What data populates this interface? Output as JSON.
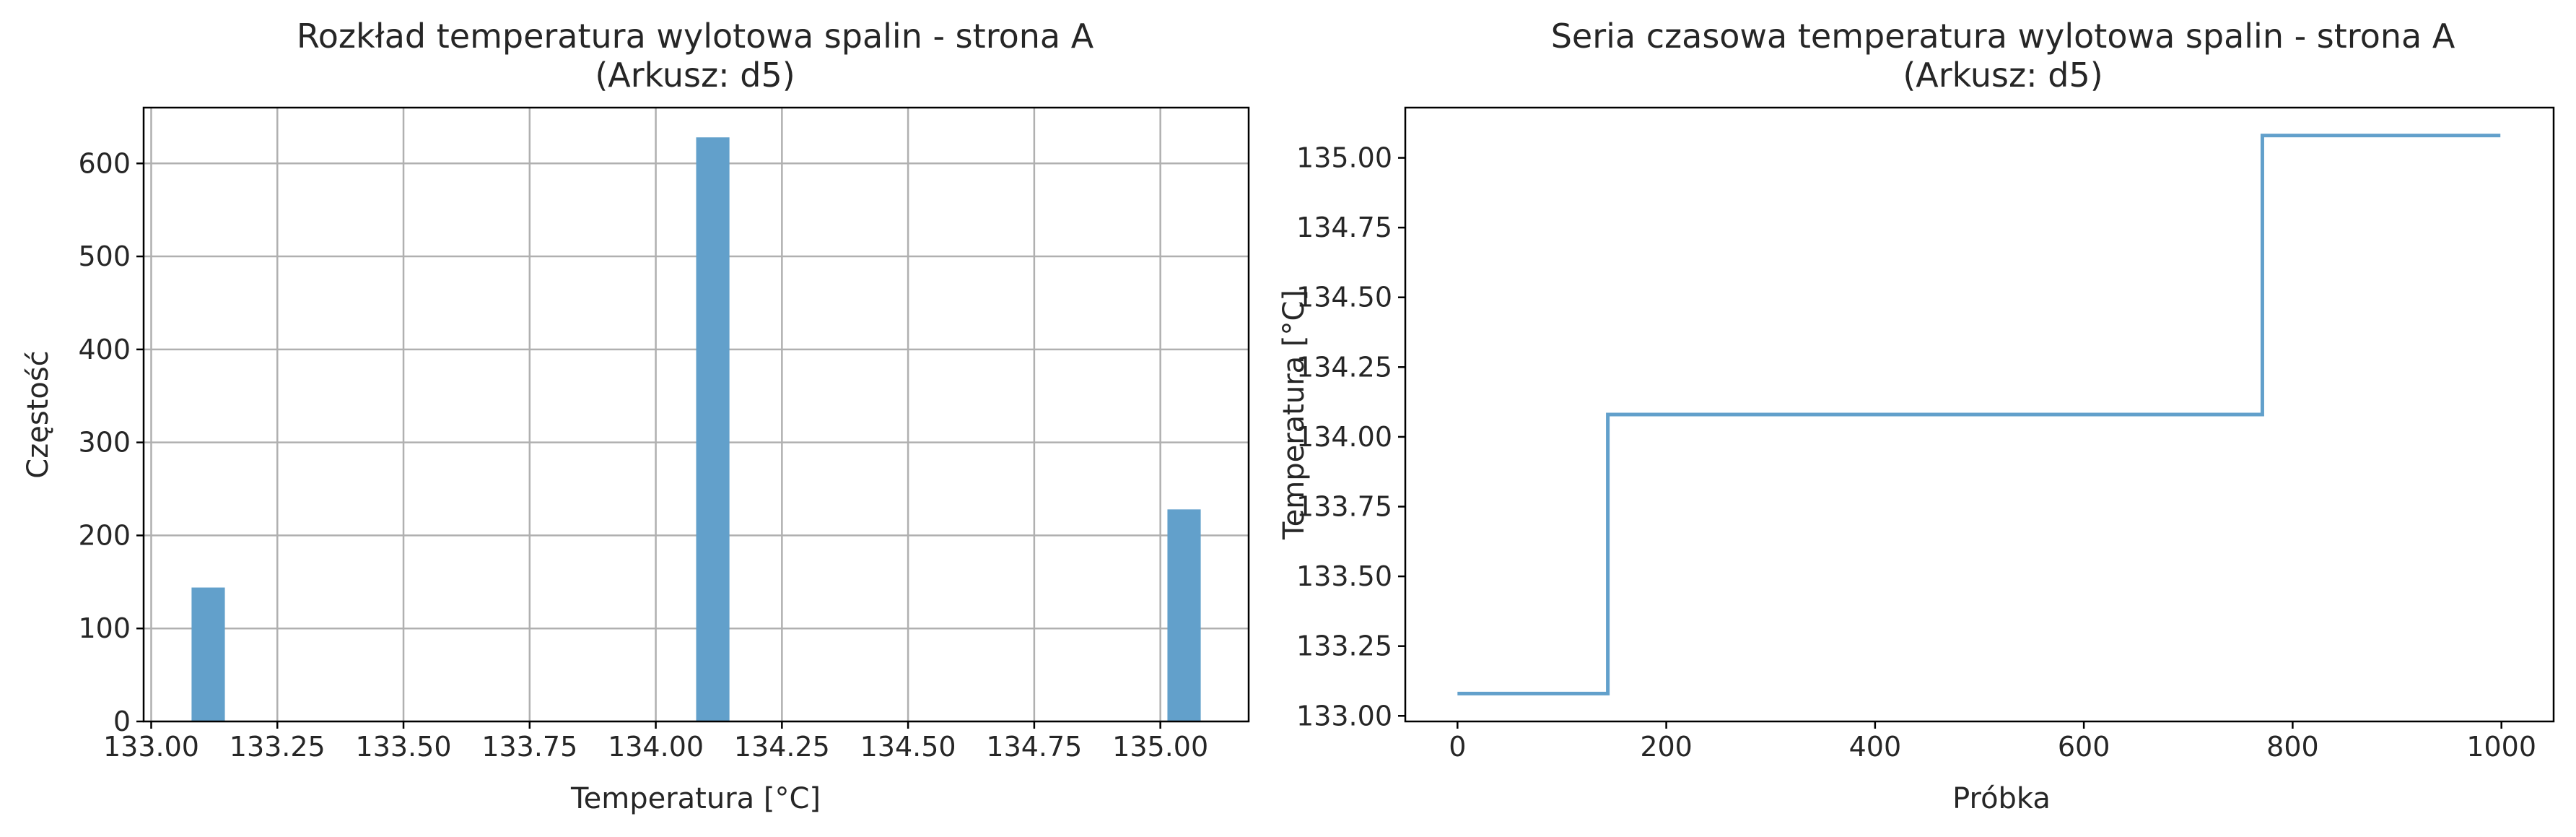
{
  "colors": {
    "bar": "#62a0cb",
    "line": "#62a0cb",
    "grid": "#b0b0b0",
    "axis": "#000000"
  },
  "chart_data": [
    {
      "type": "bar",
      "title_line1": "Rozkład temperatura wylotowa spalin - strona A",
      "title_line2": "(Arkusz: d5)",
      "xlabel": "Temperatura [°C]",
      "ylabel": "Częstość",
      "grid": true,
      "xlim": [
        132.985,
        135.175
      ],
      "ylim": [
        0,
        660
      ],
      "xticks": [
        133.0,
        133.25,
        133.5,
        133.75,
        134.0,
        134.25,
        134.5,
        134.75,
        135.0
      ],
      "xtick_labels": [
        "133.00",
        "133.25",
        "133.50",
        "133.75",
        "134.00",
        "134.25",
        "134.50",
        "134.75",
        "135.00"
      ],
      "yticks": [
        0,
        100,
        200,
        300,
        400,
        500,
        600
      ],
      "ytick_labels": [
        "0",
        "100",
        "200",
        "300",
        "400",
        "500",
        "600"
      ],
      "bars": [
        {
          "x0": 133.08,
          "x1": 133.146,
          "value": 144
        },
        {
          "x0": 134.08,
          "x1": 134.146,
          "value": 628
        },
        {
          "x0": 135.014,
          "x1": 135.08,
          "value": 228
        }
      ]
    },
    {
      "type": "line",
      "title_line1": "Seria czasowa temperatura wylotowa spalin - strona A",
      "title_line2": "(Arkusz: d5)",
      "xlabel": "Próbka",
      "ylabel": "Temperatura [°C]",
      "grid": false,
      "xlim": [
        -50,
        1050
      ],
      "ylim": [
        132.98,
        135.18
      ],
      "xticks": [
        0,
        200,
        400,
        600,
        800,
        1000
      ],
      "xtick_labels": [
        "0",
        "200",
        "400",
        "600",
        "800",
        "1000"
      ],
      "yticks": [
        133.0,
        133.25,
        133.5,
        133.75,
        134.0,
        134.25,
        134.5,
        134.75,
        135.0
      ],
      "ytick_labels": [
        "133.00",
        "133.25",
        "133.50",
        "133.75",
        "134.00",
        "134.25",
        "134.50",
        "134.75",
        "135.00"
      ],
      "points": [
        {
          "x": 0,
          "y": 133.08
        },
        {
          "x": 144,
          "y": 133.08
        },
        {
          "x": 144,
          "y": 134.08
        },
        {
          "x": 771,
          "y": 134.08
        },
        {
          "x": 771,
          "y": 135.08
        },
        {
          "x": 999,
          "y": 135.08
        }
      ]
    }
  ]
}
